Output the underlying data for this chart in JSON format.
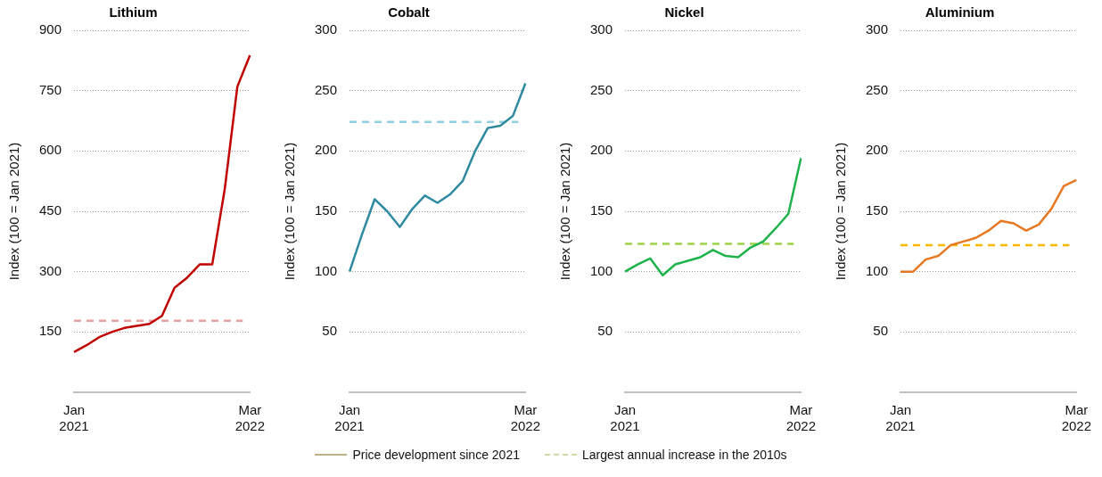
{
  "chart_data": [
    {
      "type": "line",
      "title": "Lithium",
      "ylabel": "Index (100 = Jan 2021)",
      "categories": [
        "Jan 2021",
        null,
        null,
        null,
        null,
        null,
        null,
        null,
        null,
        null,
        null,
        null,
        null,
        null,
        "Mar 2022"
      ],
      "ylim": [
        0,
        900
      ],
      "yticks": [
        150,
        300,
        450,
        600,
        750,
        900
      ],
      "grid": "y",
      "marker": "none",
      "line_style": "solid",
      "series": [
        {
          "color": "#c00000",
          "values": [
            100,
            117,
            137,
            150,
            160,
            165,
            170,
            190,
            260,
            285,
            318,
            318,
            506,
            760,
            838
          ]
        }
      ],
      "ref_lines": [
        {
          "axis": "y",
          "value": 178,
          "color": "#e8a0a0",
          "line_style": "dashed"
        }
      ]
    },
    {
      "type": "line",
      "title": "Cobalt",
      "ylabel": "Index (100 = Jan 2021)",
      "categories": [
        "Jan 2021",
        null,
        null,
        null,
        null,
        null,
        null,
        null,
        null,
        null,
        null,
        null,
        null,
        null,
        "Mar 2022"
      ],
      "ylim": [
        0,
        300
      ],
      "yticks": [
        50,
        100,
        150,
        200,
        250,
        300
      ],
      "grid": "y",
      "marker": "none",
      "line_style": "solid",
      "series": [
        {
          "color": "#2e8aa0",
          "values": [
            100,
            131,
            160,
            150,
            137,
            152,
            163,
            157,
            164,
            175,
            200,
            219,
            221,
            229,
            256
          ]
        }
      ],
      "ref_lines": [
        {
          "axis": "y",
          "value": 224,
          "color": "#8fd0e0",
          "line_style": "dashed"
        }
      ]
    },
    {
      "type": "line",
      "title": "Nickel",
      "ylabel": "Index (100 = Jan 2021)",
      "categories": [
        "Jan 2021",
        null,
        null,
        null,
        null,
        null,
        null,
        null,
        null,
        null,
        null,
        null,
        null,
        null,
        "Mar 2022"
      ],
      "ylim": [
        0,
        300
      ],
      "yticks": [
        50,
        100,
        150,
        200,
        250,
        300
      ],
      "grid": "y",
      "marker": "none",
      "line_style": "solid",
      "series": [
        {
          "color": "#1db34a",
          "values": [
            100,
            106,
            111,
            97,
            106,
            109,
            112,
            118,
            113,
            112,
            120,
            125,
            136,
            148,
            194
          ]
        }
      ],
      "ref_lines": [
        {
          "axis": "y",
          "value": 123,
          "color": "#9bd44a",
          "line_style": "dashed"
        }
      ]
    },
    {
      "type": "line",
      "title": "Aluminium",
      "ylabel": "Index (100 = Jan 2021)",
      "categories": [
        "Jan 2021",
        null,
        null,
        null,
        null,
        null,
        null,
        null,
        null,
        null,
        null,
        null,
        null,
        null,
        "Mar 2022"
      ],
      "ylim": [
        0,
        300
      ],
      "yticks": [
        50,
        100,
        150,
        200,
        250,
        300
      ],
      "grid": "y",
      "marker": "none",
      "line_style": "solid",
      "series": [
        {
          "color": "#e87722",
          "values": [
            100,
            100,
            110,
            113,
            122,
            125,
            128,
            134,
            142,
            140,
            134,
            139,
            152,
            171,
            176
          ]
        }
      ],
      "ref_lines": [
        {
          "axis": "y",
          "value": 122,
          "color": "#f7b800",
          "line_style": "dashed"
        }
      ]
    },
    {
      "type": "other",
      "legend": "bottom",
      "series": [
        {
          "name": "Price development since 2021",
          "color": "#c4ae84",
          "line_style": "solid"
        },
        {
          "name": "Largest annual increase in the 2010s",
          "color": "#d6d8a8",
          "line_style": "dashed"
        }
      ]
    }
  ]
}
